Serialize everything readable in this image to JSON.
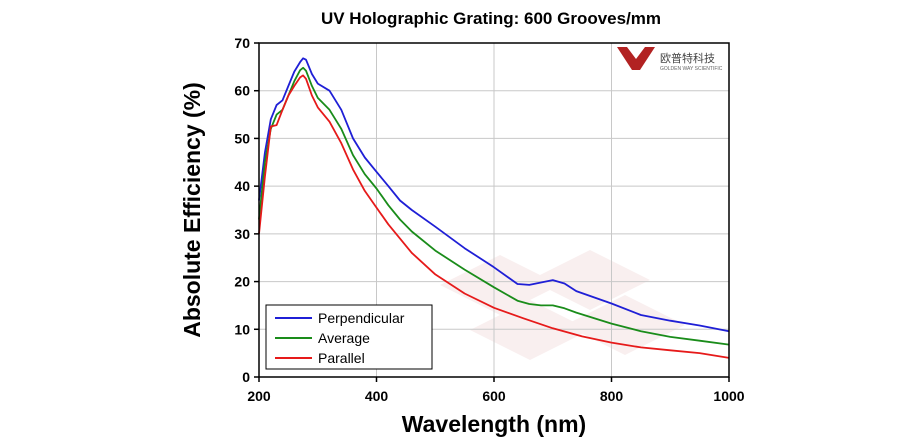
{
  "chart_data": {
    "type": "line",
    "title": "UV Holographic Grating: 600 Grooves/mm",
    "xlabel": "Wavelength (nm)",
    "ylabel": "Absolute Efficiency (%)",
    "xlim": [
      200,
      1000
    ],
    "ylim": [
      0,
      70
    ],
    "xticks": [
      200,
      400,
      600,
      800,
      1000
    ],
    "yticks": [
      0,
      10,
      20,
      30,
      40,
      50,
      60,
      70
    ],
    "grid": true,
    "legend_position": "bottom-left",
    "series": [
      {
        "name": "Perpendicular",
        "color": "#1f1fd6",
        "points": [
          [
            200,
            37
          ],
          [
            210,
            47
          ],
          [
            220,
            54
          ],
          [
            230,
            57
          ],
          [
            240,
            58
          ],
          [
            250,
            61
          ],
          [
            260,
            64
          ],
          [
            270,
            66
          ],
          [
            275,
            66.8
          ],
          [
            280,
            66.5
          ],
          [
            290,
            63.5
          ],
          [
            300,
            61.5
          ],
          [
            320,
            60
          ],
          [
            340,
            56
          ],
          [
            360,
            50
          ],
          [
            380,
            46
          ],
          [
            400,
            43
          ],
          [
            420,
            40
          ],
          [
            440,
            37
          ],
          [
            460,
            35
          ],
          [
            500,
            31.5
          ],
          [
            550,
            27
          ],
          [
            600,
            23
          ],
          [
            640,
            19.5
          ],
          [
            660,
            19.3
          ],
          [
            680,
            19.8
          ],
          [
            700,
            20.3
          ],
          [
            720,
            19.6
          ],
          [
            740,
            18
          ],
          [
            800,
            15.4
          ],
          [
            850,
            13
          ],
          [
            900,
            11.8
          ],
          [
            950,
            10.8
          ],
          [
            1000,
            9.6
          ]
        ]
      },
      {
        "name": "Average",
        "color": "#1a8c1a",
        "points": [
          [
            200,
            33
          ],
          [
            210,
            45
          ],
          [
            220,
            52
          ],
          [
            230,
            55
          ],
          [
            240,
            56
          ],
          [
            250,
            59
          ],
          [
            260,
            62
          ],
          [
            270,
            64.3
          ],
          [
            275,
            64.8
          ],
          [
            280,
            64.2
          ],
          [
            290,
            61
          ],
          [
            300,
            58.5
          ],
          [
            320,
            56
          ],
          [
            340,
            52
          ],
          [
            360,
            46.5
          ],
          [
            380,
            42.5
          ],
          [
            400,
            39.5
          ],
          [
            420,
            36
          ],
          [
            440,
            33
          ],
          [
            460,
            30.5
          ],
          [
            500,
            26.5
          ],
          [
            550,
            22.5
          ],
          [
            600,
            18.8
          ],
          [
            640,
            16
          ],
          [
            660,
            15.3
          ],
          [
            680,
            15
          ],
          [
            700,
            15
          ],
          [
            720,
            14.4
          ],
          [
            740,
            13.5
          ],
          [
            800,
            11.2
          ],
          [
            850,
            9.6
          ],
          [
            900,
            8.4
          ],
          [
            950,
            7.6
          ],
          [
            1000,
            6.8
          ]
        ]
      },
      {
        "name": "Parallel",
        "color": "#e61a1a",
        "points": [
          [
            200,
            30
          ],
          [
            210,
            42
          ],
          [
            220,
            52.5
          ],
          [
            230,
            52.8
          ],
          [
            240,
            56
          ],
          [
            250,
            59
          ],
          [
            260,
            61
          ],
          [
            270,
            62.8
          ],
          [
            275,
            63.2
          ],
          [
            280,
            62.5
          ],
          [
            290,
            59
          ],
          [
            300,
            56.5
          ],
          [
            320,
            53.5
          ],
          [
            340,
            49
          ],
          [
            360,
            43.5
          ],
          [
            380,
            39
          ],
          [
            400,
            35.5
          ],
          [
            420,
            32
          ],
          [
            440,
            29
          ],
          [
            460,
            26
          ],
          [
            500,
            21.5
          ],
          [
            550,
            17.5
          ],
          [
            600,
            14.5
          ],
          [
            650,
            12.3
          ],
          [
            700,
            10.2
          ],
          [
            750,
            8.5
          ],
          [
            800,
            7.2
          ],
          [
            850,
            6.2
          ],
          [
            900,
            5.6
          ],
          [
            950,
            5
          ],
          [
            1000,
            4
          ]
        ]
      }
    ]
  },
  "logo": {
    "text_cn": "欧普特科技",
    "text_en": "GOLDEN WAY SCIENTIFIC"
  }
}
